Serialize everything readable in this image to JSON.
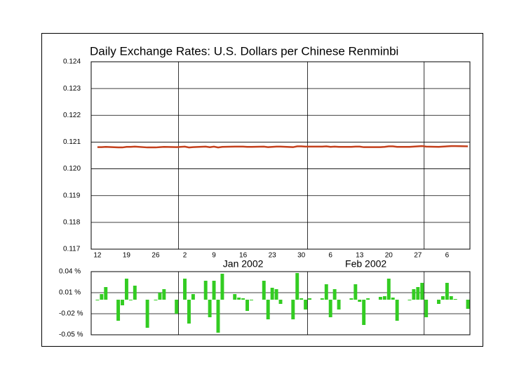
{
  "chart_data": [
    {
      "type": "line",
      "title": "Daily Exchange Rates: U.S. Dollars per Chinese Renminbi",
      "x": [
        "2001-12-12",
        "2001-12-13",
        "2001-12-14",
        "2001-12-17",
        "2001-12-18",
        "2001-12-19",
        "2001-12-20",
        "2001-12-21",
        "2001-12-24",
        "2001-12-26",
        "2001-12-27",
        "2001-12-28",
        "2001-12-31",
        "2002-01-02",
        "2002-01-03",
        "2002-01-04",
        "2002-01-07",
        "2002-01-08",
        "2002-01-09",
        "2002-01-10",
        "2002-01-11",
        "2002-01-14",
        "2002-01-15",
        "2002-01-16",
        "2002-01-17",
        "2002-01-18",
        "2002-01-21",
        "2002-01-22",
        "2002-01-23",
        "2002-01-24",
        "2002-01-25",
        "2002-01-28",
        "2002-01-29",
        "2002-01-30",
        "2002-01-31",
        "2002-02-01",
        "2002-02-04",
        "2002-02-05",
        "2002-02-06",
        "2002-02-07",
        "2002-02-08",
        "2002-02-11",
        "2002-02-12",
        "2002-02-13",
        "2002-02-14",
        "2002-02-15",
        "2002-02-18",
        "2002-02-19",
        "2002-02-20",
        "2002-02-21",
        "2002-02-22",
        "2002-02-25",
        "2002-02-26",
        "2002-02-27",
        "2002-02-28",
        "2002-03-01",
        "2002-03-04",
        "2002-03-05",
        "2002-03-06",
        "2002-03-07",
        "2002-03-08",
        "2002-03-11"
      ],
      "values": [
        0.12081,
        0.12081,
        0.12082,
        0.1208,
        0.1208,
        0.12082,
        0.12082,
        0.12083,
        0.1208,
        0.1208,
        0.12081,
        0.12082,
        0.12081,
        0.12083,
        0.1208,
        0.12081,
        0.12083,
        0.12081,
        0.12083,
        0.1208,
        0.12082,
        0.12083,
        0.12083,
        0.12083,
        0.12082,
        0.12082,
        0.12083,
        0.12081,
        0.12082,
        0.12083,
        0.12083,
        0.12081,
        0.12084,
        0.12084,
        0.12083,
        0.12083,
        0.12083,
        0.12084,
        0.12082,
        0.12083,
        0.12082,
        0.12082,
        0.12083,
        0.12083,
        0.12081,
        0.12081,
        0.12081,
        0.12082,
        0.12084,
        0.12084,
        0.12082,
        0.12082,
        0.12083,
        0.12084,
        0.12085,
        0.12083,
        0.12082,
        0.12083,
        0.12084,
        0.12085,
        0.12085,
        0.12084
      ],
      "color": "#c4401c",
      "xlim": [
        "2001-12-11",
        "2002-03-12"
      ],
      "xticks": [
        {
          "value": "2001-12-12",
          "label": "12"
        },
        {
          "value": "2001-12-19",
          "label": "19"
        },
        {
          "value": "2001-12-26",
          "label": "26"
        },
        {
          "value": "2002-01-02",
          "label": "2"
        },
        {
          "value": "2002-01-09",
          "label": "9"
        },
        {
          "value": "2002-01-16",
          "label": "16"
        },
        {
          "value": "2002-01-23",
          "label": "23"
        },
        {
          "value": "2002-01-30",
          "label": "30"
        },
        {
          "value": "2002-02-06",
          "label": "6"
        },
        {
          "value": "2002-02-13",
          "label": "13"
        },
        {
          "value": "2002-02-20",
          "label": "20"
        },
        {
          "value": "2002-02-27",
          "label": "27"
        },
        {
          "value": "2002-03-06",
          "label": "6"
        }
      ],
      "xgrid": [
        "2002-01-01",
        "2002-02-01",
        "2002-03-01"
      ],
      "month_labels": [
        "Jan 2002",
        "Feb 2002"
      ],
      "ylim": [
        0.117,
        0.124
      ],
      "yticks": [
        0.124,
        0.123,
        0.122,
        0.121,
        {
          "value": 0.12,
          "label": "0.120"
        },
        0.119,
        0.118,
        0.117
      ],
      "grid": true
    },
    {
      "type": "bar",
      "x": [
        "2001-12-12",
        "2001-12-13",
        "2001-12-14",
        "2001-12-17",
        "2001-12-18",
        "2001-12-19",
        "2001-12-20",
        "2001-12-21",
        "2001-12-24",
        "2001-12-26",
        "2001-12-27",
        "2001-12-28",
        "2001-12-31",
        "2002-01-02",
        "2002-01-03",
        "2002-01-04",
        "2002-01-07",
        "2002-01-08",
        "2002-01-09",
        "2002-01-10",
        "2002-01-11",
        "2002-01-14",
        "2002-01-15",
        "2002-01-16",
        "2002-01-17",
        "2002-01-18",
        "2002-01-21",
        "2002-01-22",
        "2002-01-23",
        "2002-01-24",
        "2002-01-25",
        "2002-01-28",
        "2002-01-29",
        "2002-01-30",
        "2002-01-31",
        "2002-02-01",
        "2002-02-04",
        "2002-02-05",
        "2002-02-06",
        "2002-02-07",
        "2002-02-08",
        "2002-02-11",
        "2002-02-12",
        "2002-02-13",
        "2002-02-14",
        "2002-02-15",
        "2002-02-18",
        "2002-02-19",
        "2002-02-20",
        "2002-02-21",
        "2002-02-22",
        "2002-02-25",
        "2002-02-26",
        "2002-02-27",
        "2002-02-28",
        "2002-03-01",
        "2002-03-04",
        "2002-03-05",
        "2002-03-06",
        "2002-03-07",
        "2002-03-08",
        "2002-03-11"
      ],
      "values": [
        0,
        0.008,
        0.018,
        -0.03,
        -0.008,
        0.03,
        0,
        0.02,
        -0.04,
        0,
        0.01,
        0.015,
        -0.02,
        0.03,
        -0.034,
        0.008,
        0.027,
        -0.025,
        0.027,
        -0.047,
        0.037,
        0.008,
        0.003,
        0.002,
        -0.016,
        0,
        0.027,
        -0.028,
        0.017,
        0.015,
        -0.006,
        -0.028,
        0.038,
        0.002,
        -0.014,
        0.002,
        0.002,
        0.022,
        -0.025,
        0.015,
        -0.014,
        0.002,
        0.022,
        -0.003,
        -0.036,
        0.002,
        0.004,
        0.005,
        0.03,
        0.003,
        -0.03,
        0,
        0.015,
        0.018,
        0.024,
        -0.025,
        -0.006,
        0.005,
        0.024,
        0.005,
        0.001,
        -0.013
      ],
      "color": "#33cc22",
      "xlim": [
        "2001-12-11",
        "2002-03-12"
      ],
      "xgrid": [
        "2002-01-01",
        "2002-02-01",
        "2002-03-01"
      ],
      "ylim": [
        -0.05,
        0.04
      ],
      "yticks": [
        {
          "value": 0.04,
          "label": "0.04 %"
        },
        {
          "value": 0.01,
          "label": "0.01 %"
        },
        {
          "value": -0.02,
          "label": "-0.02 %"
        },
        {
          "value": -0.05,
          "label": "-0.05 %"
        }
      ],
      "grid": true
    }
  ]
}
